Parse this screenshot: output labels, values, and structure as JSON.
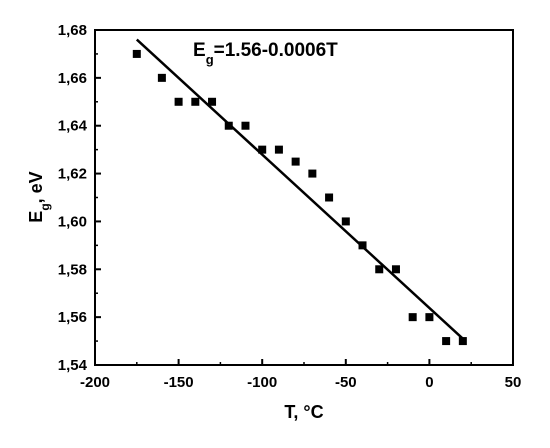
{
  "chart_data": {
    "type": "scatter",
    "xlabel": "T, °C",
    "ylabel": {
      "main": "E",
      "sub": "g",
      "rest": ", eV"
    },
    "xlim": [
      -200,
      50
    ],
    "ylim": [
      1.54,
      1.68
    ],
    "xticks": [
      -200,
      -150,
      -100,
      -50,
      0,
      50
    ],
    "yticks": [
      1.54,
      1.56,
      1.58,
      1.6,
      1.62,
      1.64,
      1.66,
      1.68
    ],
    "xtick_labels": [
      "-200",
      "-150",
      "-100",
      "-50",
      "0",
      "50"
    ],
    "ytick_labels": [
      "1,54",
      "1,56",
      "1,58",
      "1,60",
      "1,62",
      "1,64",
      "1,66",
      "1,68"
    ],
    "grid": false,
    "series": [
      {
        "x": [
          -175,
          -160,
          -150,
          -140,
          -130,
          -120,
          -110,
          -100,
          -90,
          -80,
          -70,
          -60,
          -50,
          -40,
          -30,
          -20,
          -10,
          0,
          10,
          20
        ],
        "y": [
          1.67,
          1.66,
          1.65,
          1.65,
          1.65,
          1.64,
          1.64,
          1.63,
          1.63,
          1.625,
          1.62,
          1.61,
          1.6,
          1.59,
          1.58,
          1.58,
          1.56,
          1.56,
          1.55,
          1.55
        ],
        "marker": "square",
        "color": "#000000"
      }
    ],
    "fit_line": {
      "x": [
        -175,
        20
      ],
      "y": [
        1.676,
        1.551
      ],
      "color": "#000000"
    },
    "annotation": {
      "main": "E",
      "sub": "g",
      "rest": "=1.56-0.0006T"
    }
  }
}
